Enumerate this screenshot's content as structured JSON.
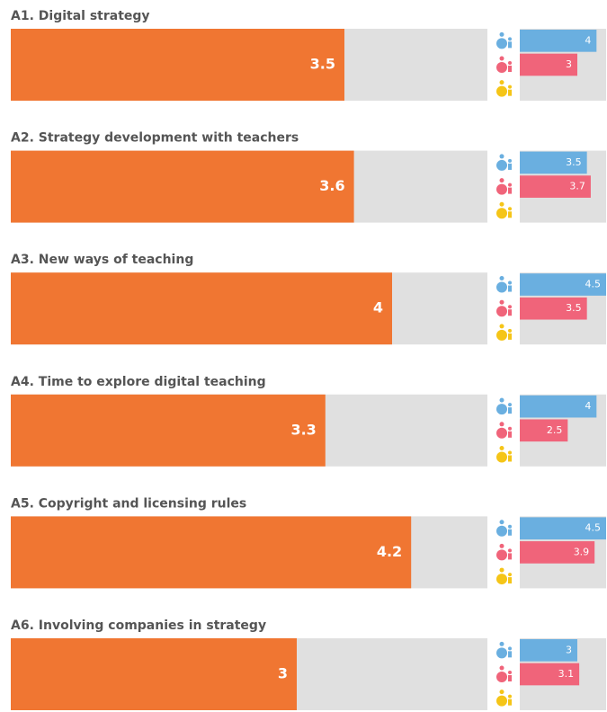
{
  "chart_data": [
    {
      "type": "bar",
      "title": "A1. Digital strategy",
      "values": [
        3.5
      ],
      "color": "#f07632",
      "xlim": [
        0,
        5
      ],
      "series_xlim": [
        0,
        4.5
      ],
      "series": [
        {
          "color": "#6aafe0",
          "values": [
            4
          ]
        },
        {
          "color": "#f0647a",
          "values": [
            3
          ]
        },
        {
          "color": "#f5c518",
          "values": [
            null
          ]
        }
      ]
    },
    {
      "type": "bar",
      "title": "A2. Strategy development with teachers",
      "values": [
        3.6
      ],
      "color": "#f07632",
      "xlim": [
        0,
        5
      ],
      "series_xlim": [
        0,
        4.5
      ],
      "series": [
        {
          "color": "#6aafe0",
          "values": [
            3.5
          ]
        },
        {
          "color": "#f0647a",
          "values": [
            3.7
          ]
        },
        {
          "color": "#f5c518",
          "values": [
            null
          ]
        }
      ]
    },
    {
      "type": "bar",
      "title": "A3. New ways of teaching",
      "values": [
        4
      ],
      "color": "#f07632",
      "xlim": [
        0,
        5
      ],
      "series_xlim": [
        0,
        4.5
      ],
      "series": [
        {
          "color": "#6aafe0",
          "values": [
            4.5
          ]
        },
        {
          "color": "#f0647a",
          "values": [
            3.5
          ]
        },
        {
          "color": "#f5c518",
          "values": [
            null
          ]
        }
      ]
    },
    {
      "type": "bar",
      "title": "A4. Time to explore digital teaching",
      "values": [
        3.3
      ],
      "color": "#f07632",
      "xlim": [
        0,
        5
      ],
      "series_xlim": [
        0,
        4.5
      ],
      "series": [
        {
          "color": "#6aafe0",
          "values": [
            4
          ]
        },
        {
          "color": "#f0647a",
          "values": [
            2.5
          ]
        },
        {
          "color": "#f5c518",
          "values": [
            null
          ]
        }
      ]
    },
    {
      "type": "bar",
      "title": "A5. Copyright and licensing rules",
      "values": [
        4.2
      ],
      "color": "#f07632",
      "xlim": [
        0,
        5
      ],
      "series_xlim": [
        0,
        4.5
      ],
      "series": [
        {
          "color": "#6aafe0",
          "values": [
            4.5
          ]
        },
        {
          "color": "#f0647a",
          "values": [
            3.9
          ]
        },
        {
          "color": "#f5c518",
          "values": [
            null
          ]
        }
      ]
    },
    {
      "type": "bar",
      "title": "A6. Involving companies in strategy",
      "values": [
        3
      ],
      "color": "#f07632",
      "xlim": [
        0,
        5
      ],
      "series_xlim": [
        0,
        4.5
      ],
      "series": [
        {
          "color": "#6aafe0",
          "values": [
            3
          ]
        },
        {
          "color": "#f0647a",
          "values": [
            3.1
          ]
        },
        {
          "color": "#f5c518",
          "values": [
            null
          ]
        }
      ]
    }
  ]
}
